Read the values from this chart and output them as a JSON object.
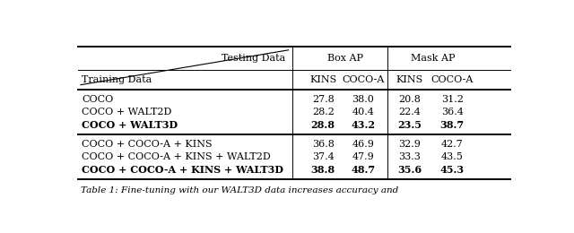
{
  "caption": "Table 1: Fine-tuning with our WALT3D data increases accuracy and",
  "header_group1": "Box AP",
  "header_group2": "Mask AP",
  "col_testing": "Testing Data",
  "col_training": "Training Data",
  "sub_cols": [
    "KINS",
    "COCO-A",
    "KINS",
    "COCO-A"
  ],
  "rows": [
    {
      "label": "COCO",
      "bold": false,
      "values": [
        "27.8",
        "38.0",
        "20.8",
        "31.2"
      ]
    },
    {
      "label": "COCO + WALT2D",
      "bold": false,
      "values": [
        "28.2",
        "40.4",
        "22.4",
        "36.4"
      ]
    },
    {
      "label": "COCO + WALT3D",
      "bold": true,
      "values": [
        "28.8",
        "43.2",
        "23.5",
        "38.7"
      ]
    },
    {
      "label": "COCO + COCO-A + KINS",
      "bold": false,
      "values": [
        "36.8",
        "46.9",
        "32.9",
        "42.7"
      ]
    },
    {
      "label": "COCO + COCO-A + KINS + WALT2D",
      "bold": false,
      "values": [
        "37.4",
        "47.9",
        "33.3",
        "43.5"
      ]
    },
    {
      "label": "COCO + COCO-A + KINS + WALT3D",
      "bold": true,
      "values": [
        "38.8",
        "48.7",
        "35.6",
        "45.3"
      ]
    }
  ],
  "bg_color": "#ffffff",
  "text_color": "#000000",
  "font_size": 8.0
}
